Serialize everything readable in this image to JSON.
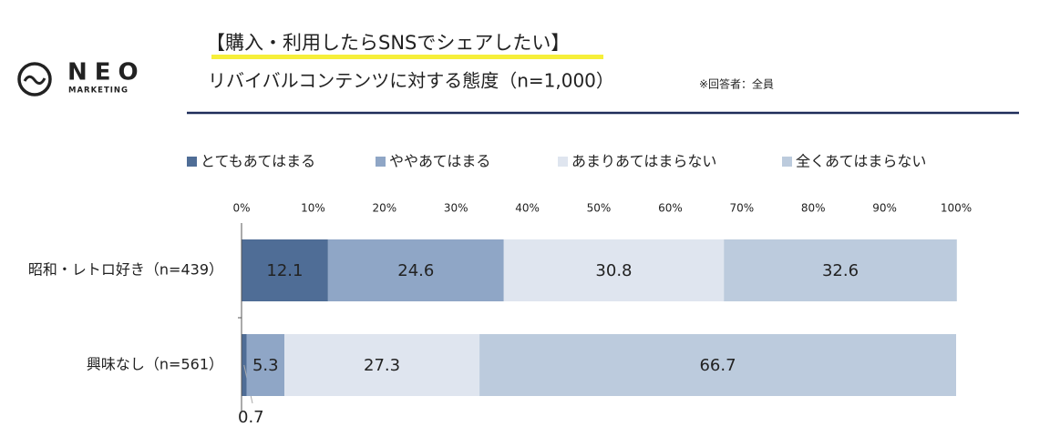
{
  "logo": {
    "name": "NEO",
    "tagline": "MARKETING"
  },
  "chart_data": {
    "type": "stacked-bar-horizontal",
    "title": "【購入・利用したらSNSでシェアしたい】",
    "subtitle": "リバイバルコンテンツに対する態度（n=1,000）",
    "note": "※回答者：全員",
    "categories": [
      "昭和・レトロ好き（n=439）",
      "興味なし（n=561）"
    ],
    "series": [
      {
        "name": "とてもあてはまる",
        "color": "#4f6d96",
        "values": [
          12.1,
          0.7
        ]
      },
      {
        "name": "ややあてはまる",
        "color": "#8fa6c6",
        "values": [
          24.6,
          5.3
        ]
      },
      {
        "name": "あまりあてはまらない",
        "color": "#dfe5ef",
        "values": [
          30.8,
          27.3
        ]
      },
      {
        "name": "全くあてはまらない",
        "color": "#bccbdd",
        "values": [
          32.6,
          66.7
        ]
      }
    ],
    "xlim": [
      0,
      100
    ],
    "xticks": [
      {
        "value": 0,
        "label": "0%"
      },
      {
        "value": 10,
        "label": "10%"
      },
      {
        "value": 20,
        "label": "20%"
      },
      {
        "value": 30,
        "label": "30%"
      },
      {
        "value": 40,
        "label": "40%"
      },
      {
        "value": 50,
        "label": "50%"
      },
      {
        "value": 60,
        "label": "60%"
      },
      {
        "value": 70,
        "label": "70%"
      },
      {
        "value": 80,
        "label": "80%"
      },
      {
        "value": 90,
        "label": "90%"
      },
      {
        "value": 100,
        "label": "100%"
      }
    ],
    "legend": "top"
  }
}
